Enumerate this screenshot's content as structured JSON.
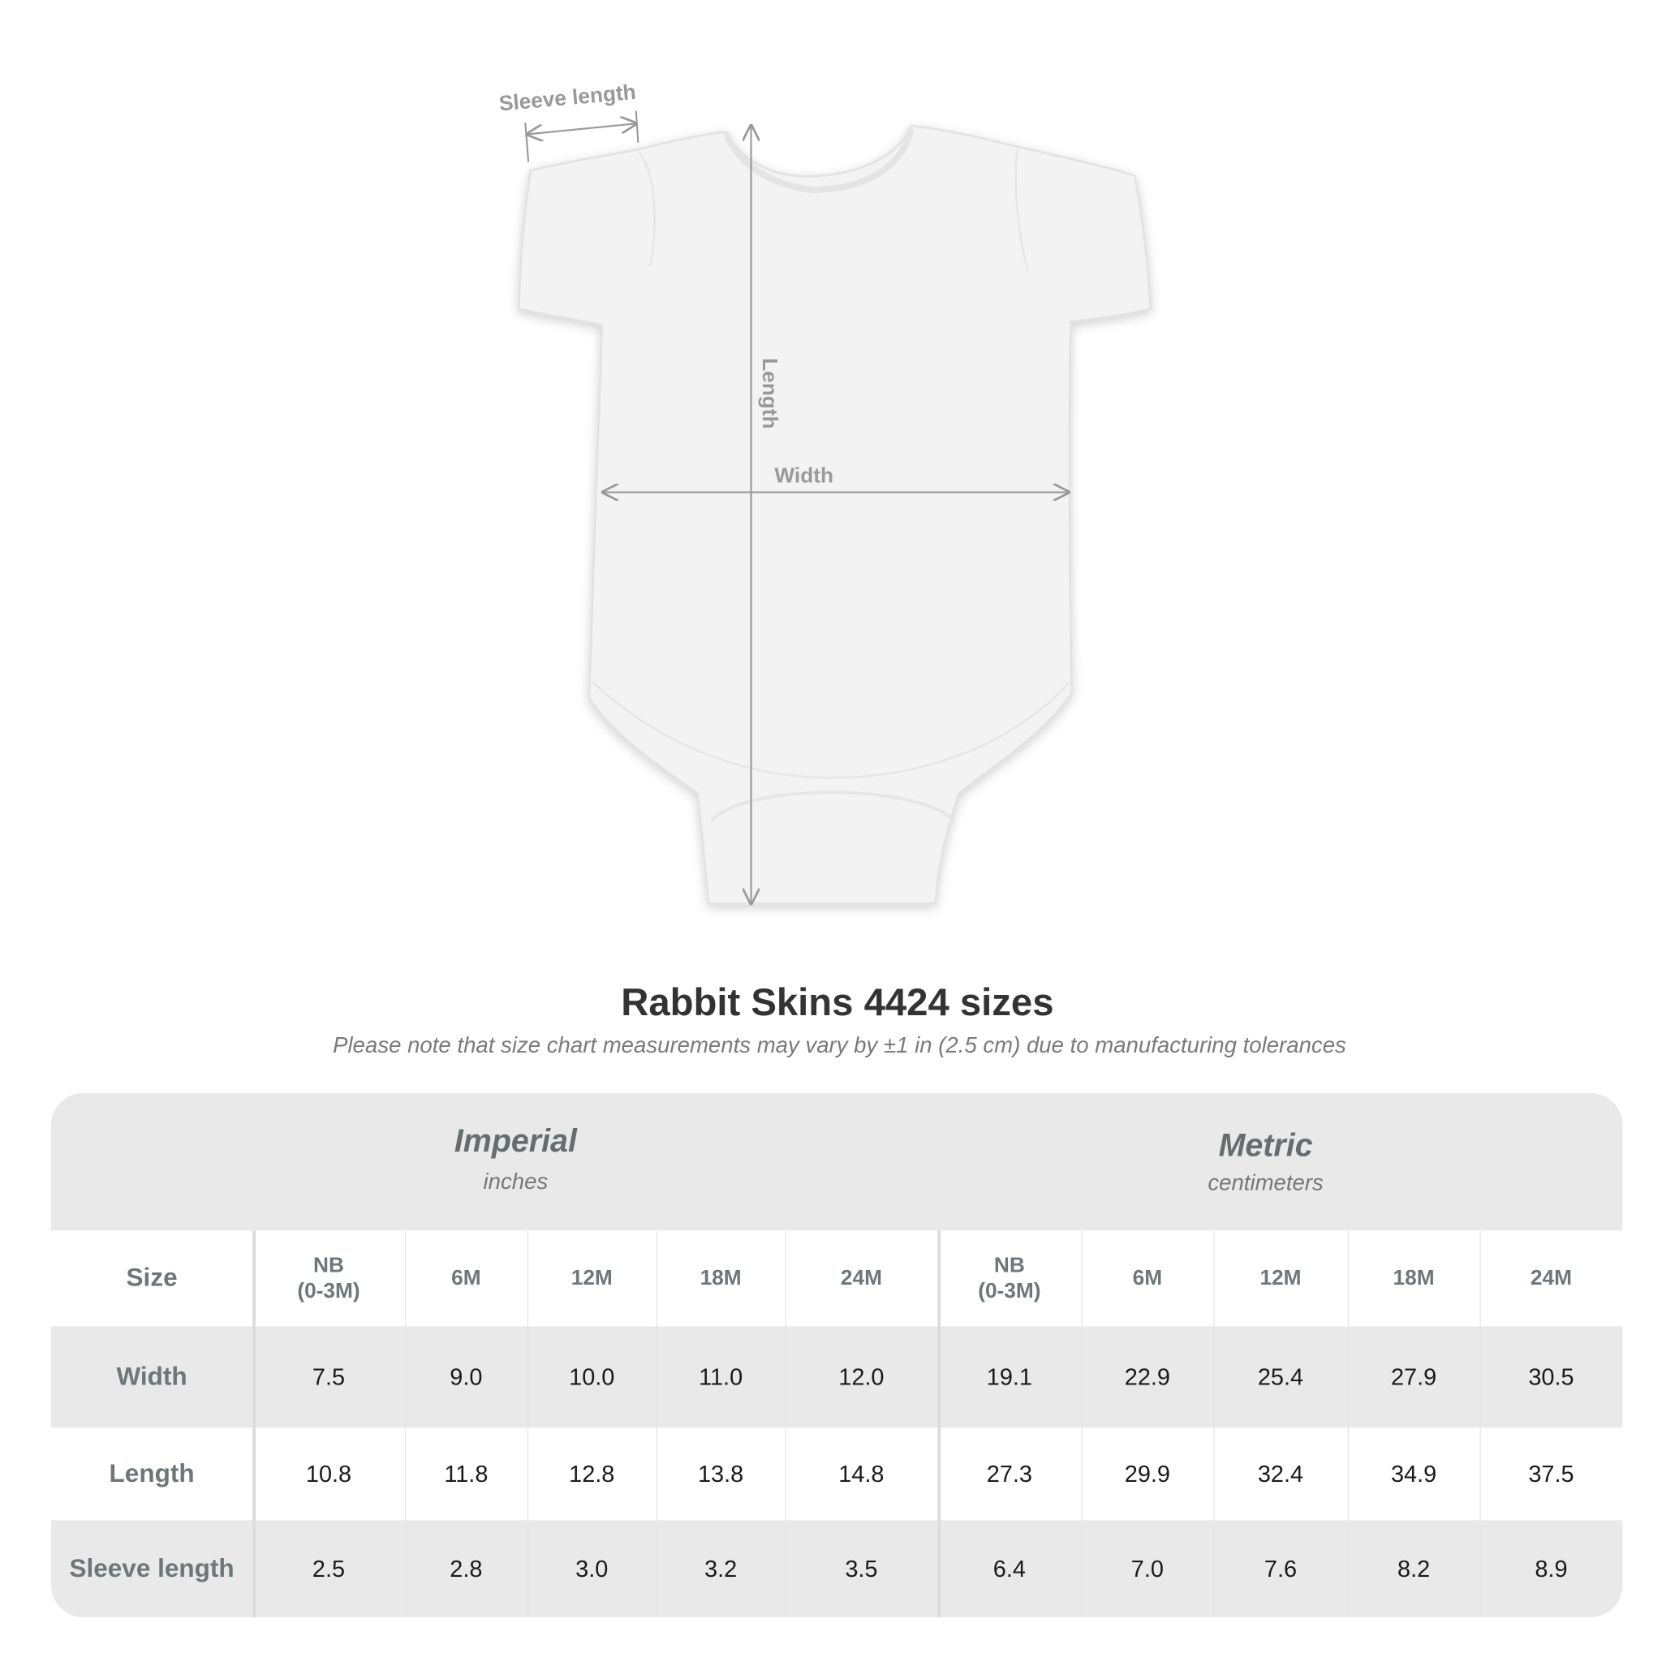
{
  "diagram": {
    "labels": {
      "sleeve": "Sleeve length",
      "length": "Length",
      "width": "Width"
    }
  },
  "title": "Rabbit Skins 4424 sizes",
  "subtitle": "Please note that size chart measurements may vary by ±1 in (2.5 cm) due to manufacturing tolerances",
  "table": {
    "imperial": {
      "title": "Imperial",
      "unit": "inches"
    },
    "metric": {
      "title": "Metric",
      "unit": "centimeters"
    },
    "size_label": "Size",
    "sizes": [
      "NB\n(0-3M)",
      "6M",
      "12M",
      "18M",
      "24M"
    ],
    "rows": [
      {
        "label": "Width",
        "imperial": [
          "7.5",
          "9.0",
          "10.0",
          "11.0",
          "12.0"
        ],
        "metric": [
          "19.1",
          "22.9",
          "25.4",
          "27.9",
          "30.5"
        ]
      },
      {
        "label": "Length",
        "imperial": [
          "10.8",
          "11.8",
          "12.8",
          "13.8",
          "14.8"
        ],
        "metric": [
          "27.3",
          "29.9",
          "32.4",
          "34.9",
          "37.5"
        ]
      },
      {
        "label": "Sleeve length",
        "imperial": [
          "2.5",
          "2.8",
          "3.0",
          "3.2",
          "3.5"
        ],
        "metric": [
          "6.4",
          "7.0",
          "7.6",
          "8.2",
          "8.9"
        ]
      }
    ]
  }
}
